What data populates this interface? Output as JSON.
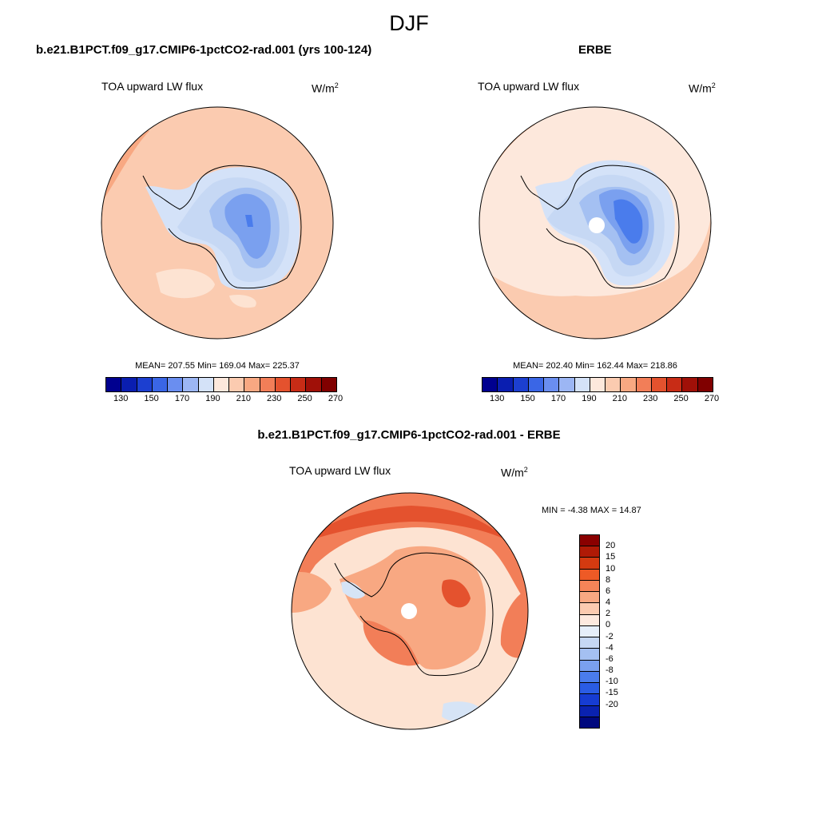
{
  "title": "DJF",
  "panels": {
    "model": {
      "case_title": "b.e21.B1PCT.f09_g17.CMIP6-1pctCO2-rad.001 (yrs 100-124)",
      "variable": "TOA upward LW flux",
      "units_base": "W/m",
      "units_exp": "2",
      "stats": "MEAN= 207.55  Min= 169.04  Max= 225.37",
      "mean": 207.55,
      "min": 169.04,
      "max": 225.37
    },
    "obs": {
      "case_title": "ERBE",
      "variable": "TOA upward LW flux",
      "units_base": "W/m",
      "units_exp": "2",
      "stats": "MEAN= 202.40  Min= 162.44  Max= 218.86",
      "mean": 202.4,
      "min": 162.44,
      "max": 218.86
    },
    "diff": {
      "case_title": "b.e21.B1PCT.f09_g17.CMIP6-1pctCO2-rad.001 - ERBE",
      "variable": "TOA upward LW flux",
      "units_base": "W/m",
      "units_exp": "2",
      "stats": "MIN =  -4.38 MAX =  14.87",
      "min": -4.38,
      "max": 14.87
    }
  },
  "colorbar_abs": {
    "colors": [
      "#00008f",
      "#0a1eb0",
      "#1c3fd0",
      "#3a66e6",
      "#6a8ef0",
      "#9cb6f4",
      "#d4e2f8",
      "#fde8dc",
      "#fbcbb0",
      "#f8a882",
      "#f27e58",
      "#e4522e",
      "#c82c16",
      "#a01008",
      "#800000"
    ],
    "tick_labels": [
      "130",
      "150",
      "170",
      "190",
      "210",
      "230",
      "250",
      "270"
    ]
  },
  "colorbar_diff": {
    "colors": [
      "#8a0000",
      "#b01a06",
      "#d43a10",
      "#ee5a26",
      "#f58458",
      "#f8a882",
      "#fbcbb0",
      "#fdeadf",
      "#e6effa",
      "#c6d8f4",
      "#a4c0f2",
      "#7aa0ef",
      "#4a7cec",
      "#2a5ce4",
      "#163cd2",
      "#0a22b0",
      "#00087e"
    ],
    "tick_labels": [
      "20",
      "15",
      "10",
      "8",
      "6",
      "4",
      "2",
      "0",
      "-2",
      "-4",
      "-6",
      "-8",
      "-10",
      "-15",
      "-20"
    ]
  },
  "map_colors": {
    "land_deep": "#4a7cec",
    "land_mid": "#7aa0ef",
    "land_light": "#a4c0f2",
    "land_pale": "#c6d8f4",
    "land_edge": "#d4e2f8",
    "ocean_model": "#fbcbb0",
    "ocean_model_light": "#fde3d2",
    "ocean_model_dark": "#f8a882",
    "ocean_obs": "#fde8dc",
    "ocean_obs_dark": "#fbcbb0",
    "ocean_obs_edge": "#f8b896",
    "diff_ocean_base": "#fde3d2",
    "diff_warm1": "#f8a882",
    "diff_warm2": "#f27e58",
    "diff_warm3": "#e4522e",
    "diff_cool": "#d6e4f6"
  }
}
